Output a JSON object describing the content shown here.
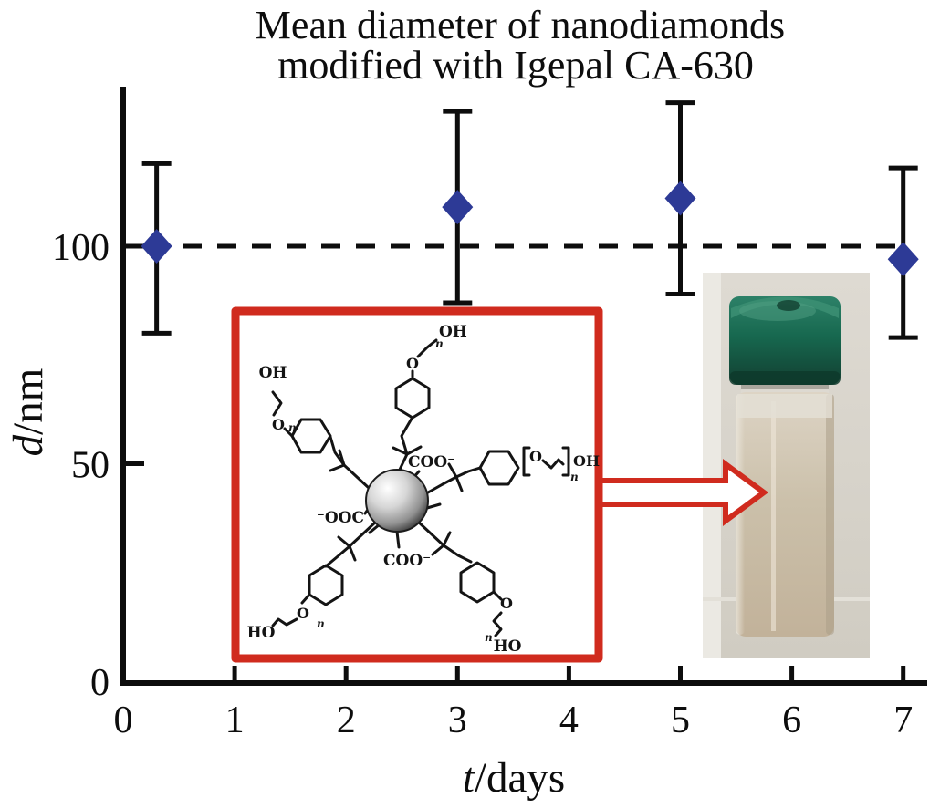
{
  "title": {
    "line1": "Mean diameter of nanodiamonds",
    "line2": "modified with Igepal CA-630"
  },
  "axes": {
    "x_title_italic": "t",
    "x_title_rest": "/days",
    "y_title_italic": "d",
    "y_title_rest": "/nm"
  },
  "chart_data": {
    "type": "scatter",
    "title": "Mean diameter of nanodiamonds modified with Igepal CA-630",
    "xlabel": "t/days",
    "ylabel": "d/nm",
    "x": [
      0.3,
      3,
      5,
      7
    ],
    "y": [
      100,
      109,
      111,
      97
    ],
    "err_up": [
      19,
      22,
      22,
      21
    ],
    "err_down": [
      20,
      22,
      22,
      18
    ],
    "reference_line_y": 100,
    "reference_line_style": "dashed",
    "x_ticks": [
      0,
      1,
      2,
      3,
      4,
      5,
      6,
      7
    ],
    "y_ticks": [
      0,
      50,
      100
    ],
    "xlim": [
      0,
      7.3
    ],
    "ylim": [
      0,
      140
    ],
    "grid": false,
    "legend": null,
    "marker": "diamond",
    "marker_color": "#2d3a96",
    "error_bar_color": "#0d0d0d"
  },
  "molecule": {
    "labels": {
      "oh_top": "OH",
      "oh_left": "OH",
      "oh_right": "OH",
      "ho_bottom_left": "HO",
      "ho_bottom_right": "HO",
      "coo_top": "COO⁻",
      "ooc_left": "⁻OOC",
      "coo_bottom": "COO⁻",
      "o_top": "O",
      "o_left": "O",
      "o_right": "O",
      "o_bottom_left": "O",
      "o_bottom_right": "O",
      "n_sub": "n"
    }
  },
  "colors": {
    "accent_red": "#d02b1e",
    "marker_blue": "#2d3a96",
    "cap_green": "#17684f",
    "liquid_beige": "#cbc0aa",
    "photo_background": "#d8d4cb",
    "axis_black": "#0d0d0d"
  }
}
